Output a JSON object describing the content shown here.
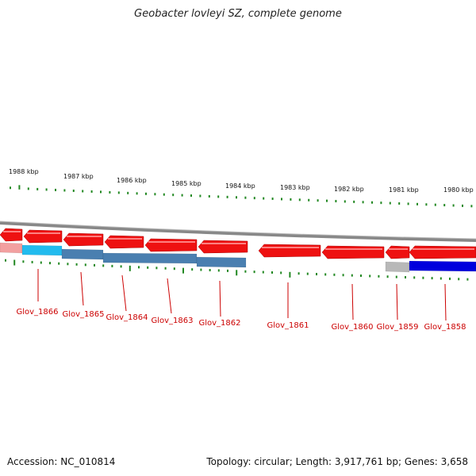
{
  "title": "Geobacter lovleyi SZ, complete genome",
  "accession": "Accession: NC_010814",
  "summary": "Topology: circular; Length: 3,917,761 bp; Genes: 3,658",
  "scale_ticks": [
    "1988 kbp",
    "1987 kbp",
    "1986 kbp",
    "1985 kbp",
    "1984 kbp",
    "1983 kbp",
    "1982 kbp",
    "1981 kbp",
    "1980 kbp"
  ],
  "gene_labels": [
    "Glov_1866",
    "Glov_1865",
    "Glov_1864",
    "Glov_1863",
    "Glov_1862",
    "Glov_1861",
    "Glov_1860",
    "Glov_1859",
    "Glov_1858"
  ],
  "colors": {
    "gene_arrow": "#ee1111",
    "backbone": "#888888",
    "tick": "#228822",
    "label": "#cc0000",
    "cog_light_blue": "#22bbee",
    "cog_steel_blue": "#4a7fb0",
    "cog_grey": "#b8b8b8",
    "cog_blue": "#0000dd",
    "cog_pink": "#f2a0a0"
  }
}
